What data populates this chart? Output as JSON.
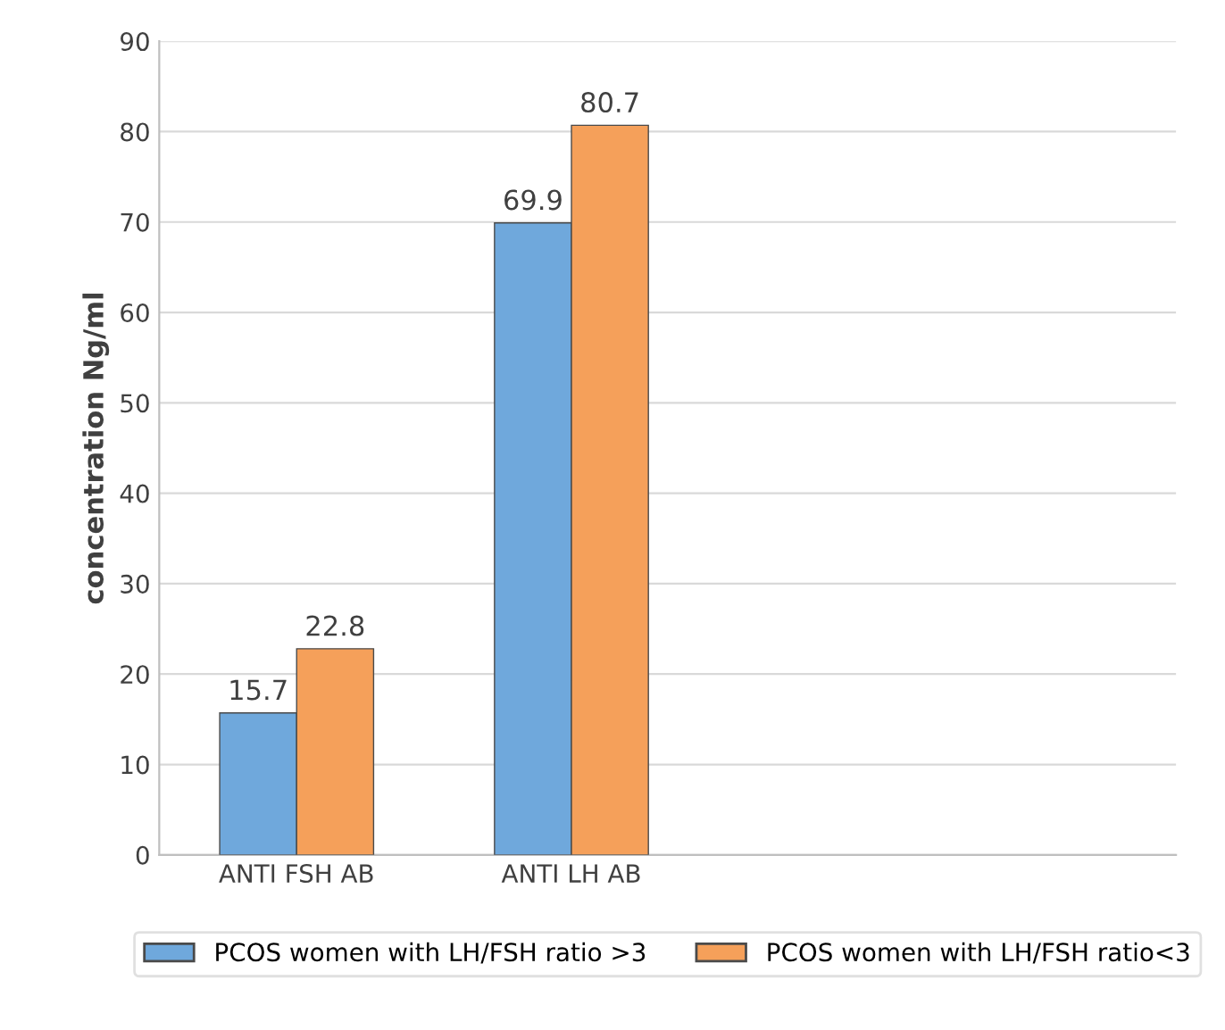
{
  "chart_data": {
    "type": "bar",
    "ylabel": "concentration Ng/ml",
    "categories": [
      "ANTI FSH AB",
      "ANTI LH AB"
    ],
    "series": [
      {
        "name": "PCOS women with LH/FSH ratio >3",
        "color": "#6fa8dc",
        "values": [
          15.7,
          69.9
        ]
      },
      {
        "name": "PCOS women with LH/FSH ratio<3",
        "color": "#f5a05a",
        "values": [
          22.8,
          80.7
        ]
      }
    ],
    "ylim": [
      0,
      90
    ],
    "yticks": [
      0,
      10,
      20,
      30,
      40,
      50,
      60,
      70,
      80,
      90
    ],
    "grid": "y",
    "legend": "bottom",
    "data_labels": true
  }
}
